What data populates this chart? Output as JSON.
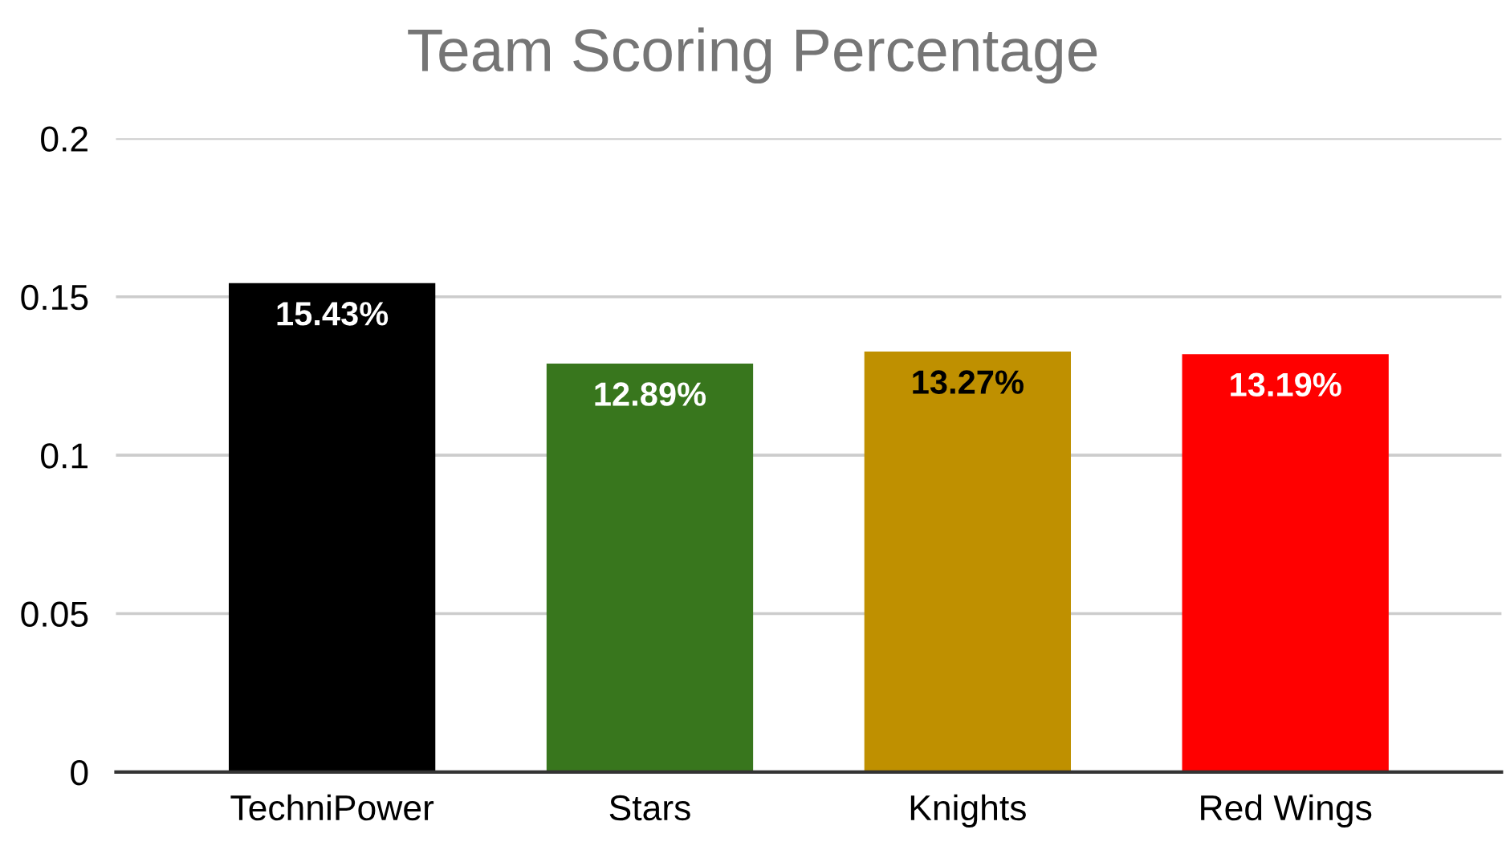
{
  "chart_data": {
    "type": "bar",
    "title": "Team Scoring Percentage",
    "categories": [
      "TechniPower",
      "Stars",
      "Knights",
      "Red Wings"
    ],
    "values": [
      0.1543,
      0.1289,
      0.1327,
      0.1319
    ],
    "colors": [
      "#000000",
      "#38761d",
      "#bf9000",
      "#ff0000"
    ],
    "value_labels": [
      "15.43%",
      "12.89%",
      "13.27%",
      "13.19%"
    ],
    "ylim": [
      0,
      0.2
    ],
    "yticks": [
      0,
      0.05,
      0.1,
      0.15,
      0.2
    ],
    "grid": "y",
    "legend": false
  }
}
